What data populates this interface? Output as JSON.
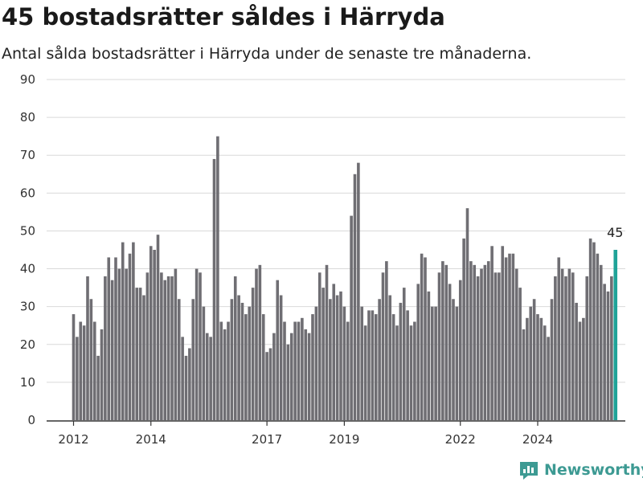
{
  "chart_data": {
    "type": "bar",
    "title": "45 bostadsrätter såldes i Härryda",
    "subtitle": "Antal sålda bostadsrätter i Härryda under de senaste tre månaderna.",
    "ylim": [
      0,
      90
    ],
    "y_ticks": [
      "0",
      "10",
      "20",
      "30",
      "40",
      "50",
      "60",
      "70",
      "80",
      "90"
    ],
    "x_tick_labels": [
      {
        "label": "2012",
        "index": 0
      },
      {
        "label": "2014",
        "index": 22
      },
      {
        "label": "2017",
        "index": 55
      },
      {
        "label": "2019",
        "index": 77
      },
      {
        "label": "2022",
        "index": 110
      },
      {
        "label": "2024",
        "index": 132
      }
    ],
    "grid": true,
    "values": [
      28,
      22,
      26,
      25,
      38,
      32,
      26,
      17,
      24,
      38,
      43,
      37,
      43,
      40,
      47,
      40,
      44,
      47,
      35,
      35,
      33,
      39,
      46,
      45,
      49,
      39,
      37,
      38,
      38,
      40,
      32,
      22,
      17,
      19,
      32,
      40,
      39,
      30,
      23,
      22,
      69,
      75,
      26,
      24,
      26,
      32,
      38,
      33,
      31,
      28,
      30,
      35,
      40,
      41,
      28,
      18,
      19,
      23,
      37,
      33,
      26,
      20,
      23,
      26,
      26,
      27,
      24,
      23,
      28,
      30,
      39,
      35,
      41,
      32,
      36,
      33,
      34,
      30,
      26,
      54,
      65,
      68,
      30,
      25,
      29,
      29,
      28,
      32,
      39,
      42,
      33,
      28,
      25,
      31,
      35,
      29,
      25,
      26,
      36,
      44,
      43,
      34,
      30,
      30,
      39,
      42,
      41,
      36,
      32,
      30,
      37,
      48,
      56,
      42,
      41,
      38,
      40,
      41,
      42,
      46,
      39,
      39,
      46,
      43,
      44,
      44,
      40,
      35,
      24,
      27,
      30,
      32,
      28,
      27,
      25,
      22,
      32,
      38,
      43,
      40,
      38,
      40,
      39,
      31,
      26,
      27,
      38,
      48,
      47,
      44,
      41,
      36,
      34,
      38,
      45
    ],
    "highlight_last": true,
    "annotation": "45",
    "colors": {
      "bar": "#6f6e73",
      "highlight": "#1fa398",
      "grid": "#d9d9d9",
      "axis": "#333333"
    }
  },
  "brand": {
    "name": "Newsworthy",
    "icon": "newsworthy-logo-icon"
  }
}
